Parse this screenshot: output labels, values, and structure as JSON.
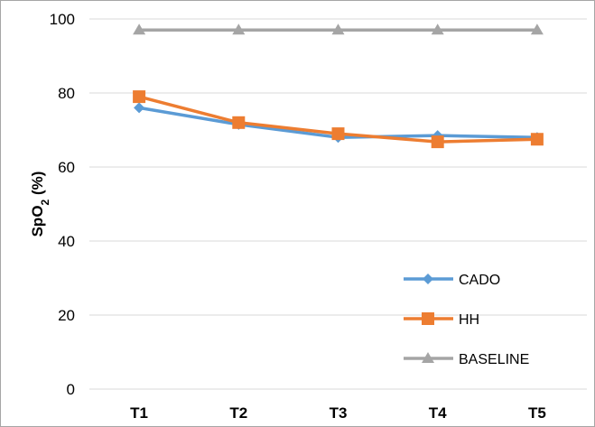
{
  "chart_data": {
    "type": "line",
    "ylabel_main": "SpO",
    "ylabel_sub": "2",
    "ylabel_unit": " (%)",
    "categories": [
      "T1",
      "T2",
      "T3",
      "T4",
      "T5"
    ],
    "ylim": [
      0,
      100
    ],
    "yticks": [
      0,
      20,
      40,
      60,
      80,
      100
    ],
    "grid": true,
    "legend_position": "bottom-right",
    "series": [
      {
        "name": "CADO",
        "values": [
          76,
          71.5,
          68,
          68.5,
          68
        ],
        "color": "#5b9bd5",
        "marker": "diamond"
      },
      {
        "name": "HH",
        "values": [
          79,
          72,
          69,
          66.8,
          67.5
        ],
        "color": "#ed7d31",
        "marker": "square"
      },
      {
        "name": "BASELINE",
        "values": [
          97,
          97,
          97,
          97,
          97
        ],
        "color": "#a5a5a5",
        "marker": "triangle"
      }
    ]
  }
}
